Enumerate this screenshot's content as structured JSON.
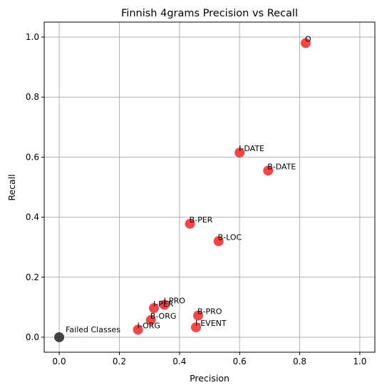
{
  "chart_data": {
    "type": "scatter",
    "title": "Finnish 4grams Precision vs Recall",
    "xlabel": "Precision",
    "ylabel": "Recall",
    "xlim": [
      -0.05,
      1.05
    ],
    "ylim": [
      -0.05,
      1.05
    ],
    "xticks": [
      "0.0",
      "0.2",
      "0.4",
      "0.6",
      "0.8",
      "1.0"
    ],
    "yticks": [
      "0.0",
      "0.2",
      "0.4",
      "0.6",
      "0.8",
      "1.0"
    ],
    "grid": true,
    "colors": {
      "class_point": "#f03a3a",
      "failed_point": "#333333"
    },
    "points": [
      {
        "label": "O",
        "x": 0.82,
        "y": 0.98,
        "kind": "class"
      },
      {
        "label": "I-DATE",
        "x": 0.6,
        "y": 0.615,
        "kind": "class"
      },
      {
        "label": "B-DATE",
        "x": 0.695,
        "y": 0.555,
        "kind": "class"
      },
      {
        "label": "B-PER",
        "x": 0.435,
        "y": 0.378,
        "kind": "class"
      },
      {
        "label": "B-LOC",
        "x": 0.53,
        "y": 0.32,
        "kind": "class"
      },
      {
        "label": "I-PRO",
        "x": 0.35,
        "y": 0.108,
        "kind": "class"
      },
      {
        "label": "I-PER",
        "x": 0.315,
        "y": 0.097,
        "kind": "class"
      },
      {
        "label": "B-PRO",
        "x": 0.462,
        "y": 0.072,
        "kind": "class"
      },
      {
        "label": "B-ORG",
        "x": 0.305,
        "y": 0.057,
        "kind": "class"
      },
      {
        "label": "I-EVENT",
        "x": 0.455,
        "y": 0.033,
        "kind": "class"
      },
      {
        "label": "I-ORG",
        "x": 0.262,
        "y": 0.025,
        "kind": "class"
      },
      {
        "label": "Failed Classes",
        "x": 0.0,
        "y": 0.0,
        "kind": "failed"
      }
    ]
  }
}
